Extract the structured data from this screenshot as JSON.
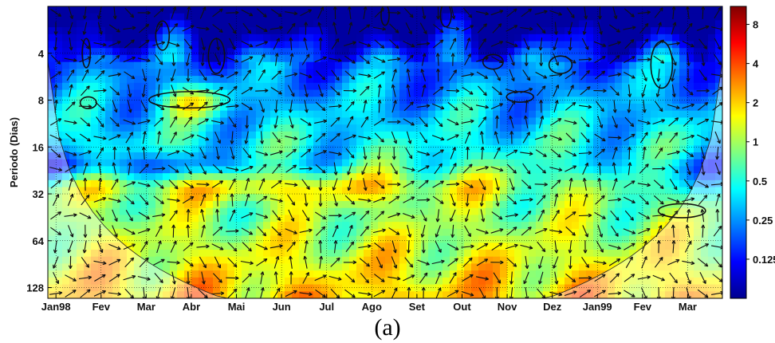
{
  "chart_data": {
    "type": "heatmap",
    "title": "",
    "xlabel": "",
    "ylabel": "Periodo (Dias)",
    "x_ticks": [
      "Jan98",
      "Fev",
      "Mar",
      "Abr",
      "Mai",
      "Jun",
      "Jul",
      "Ago",
      "Set",
      "Out",
      "Nov",
      "Dez",
      "Jan99",
      "Fev",
      "Mar"
    ],
    "y_ticks": [
      4,
      8,
      16,
      32,
      64,
      128
    ],
    "y_scale": "log2",
    "y_range_days": [
      2,
      150
    ],
    "colorbar_ticks": [
      "8",
      "4",
      "2",
      "1",
      "0.5",
      "0.25",
      "0.125"
    ],
    "colorbar_range": [
      0.0625,
      11
    ],
    "colormap": [
      "#00008f",
      "#0000ff",
      "#0080ff",
      "#00ffff",
      "#80ff80",
      "#ffff00",
      "#ff8000",
      "#ff0000",
      "#800000"
    ],
    "grid": true,
    "cone_of_influence": true,
    "significance_contours": true,
    "phase_arrows": true,
    "caption": "(a)"
  }
}
